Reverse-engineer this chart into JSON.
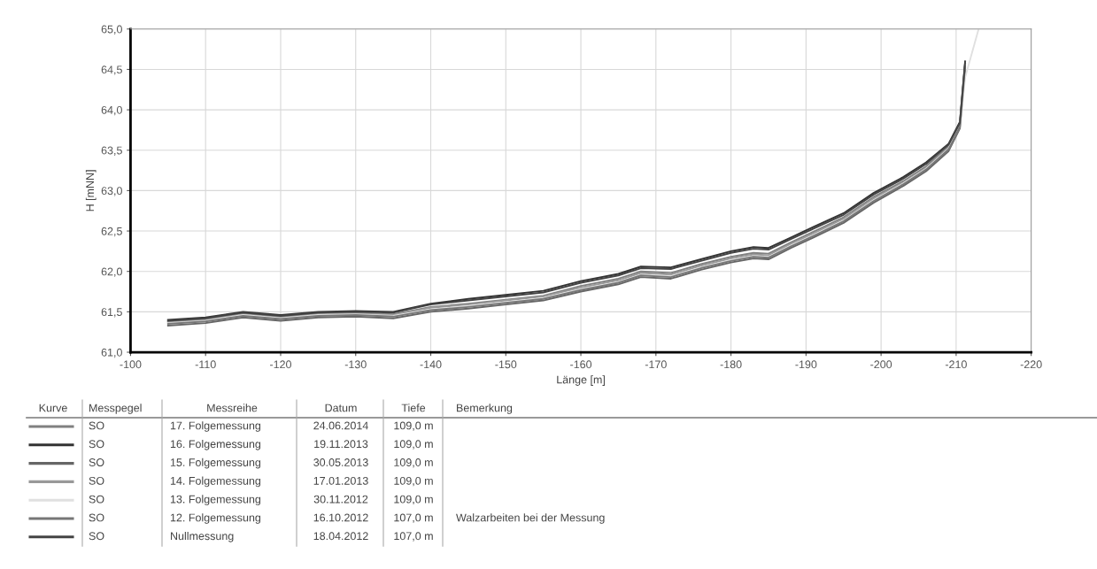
{
  "chart_data": {
    "type": "line",
    "xlabel": "Länge [m]",
    "ylabel": "H [mNN]",
    "x": [
      -105,
      -110,
      -115,
      -120,
      -125,
      -130,
      -135,
      -140,
      -145,
      -150,
      -155,
      -160,
      -165,
      -168,
      -172,
      -176,
      -180,
      -183,
      -185,
      -188,
      -191,
      -195,
      -199,
      -203,
      -206,
      -209,
      -210.5,
      -211.2,
      -213
    ],
    "xlim": [
      -100,
      -220
    ],
    "xticks": [
      -100,
      -110,
      -120,
      -130,
      -140,
      -150,
      -160,
      -170,
      -180,
      -190,
      -200,
      -210,
      -220
    ],
    "ylim": [
      61.0,
      65.0
    ],
    "yticks": [
      {
        "value": 61.0,
        "label": "61,0"
      },
      {
        "value": 61.5,
        "label": "61,5"
      },
      {
        "value": 62.0,
        "label": "62,0"
      },
      {
        "value": 62.5,
        "label": "62,5"
      },
      {
        "value": 63.0,
        "label": "63,0"
      },
      {
        "value": 63.5,
        "label": "63,5"
      },
      {
        "value": 64.0,
        "label": "64,0"
      },
      {
        "value": 64.5,
        "label": "64,5"
      },
      {
        "value": 65.0,
        "label": "65,0"
      }
    ],
    "grid": true,
    "series": [
      {
        "color": "#808080",
        "values": [
          61.38,
          61.41,
          61.48,
          61.44,
          61.48,
          61.49,
          61.47,
          61.56,
          61.6,
          61.65,
          61.7,
          61.82,
          61.91,
          62.0,
          61.98,
          62.09,
          62.18,
          62.23,
          62.22,
          62.36,
          62.49,
          62.67,
          62.92,
          63.12,
          63.3,
          63.55,
          63.82,
          64.57,
          null
        ]
      },
      {
        "color": "#333333",
        "values": [
          61.4,
          61.43,
          61.5,
          61.46,
          61.5,
          61.51,
          61.5,
          61.6,
          61.66,
          61.71,
          61.76,
          61.88,
          61.97,
          62.06,
          62.05,
          62.15,
          62.25,
          62.3,
          62.29,
          62.42,
          62.55,
          62.72,
          62.97,
          63.17,
          63.35,
          63.58,
          63.85,
          64.6,
          null
        ]
      },
      {
        "color": "#666666",
        "values": [
          61.33,
          61.36,
          61.43,
          61.39,
          61.43,
          61.44,
          61.42,
          61.5,
          61.54,
          61.59,
          61.64,
          61.75,
          61.84,
          61.93,
          61.91,
          62.02,
          62.11,
          62.16,
          62.15,
          62.29,
          62.42,
          62.6,
          62.85,
          63.06,
          63.24,
          63.49,
          63.77,
          64.52,
          null
        ]
      },
      {
        "color": "#999999",
        "values": [
          61.37,
          61.4,
          61.47,
          61.43,
          61.47,
          61.48,
          61.46,
          61.55,
          61.59,
          61.64,
          61.69,
          61.8,
          61.89,
          61.98,
          61.96,
          62.07,
          62.16,
          62.21,
          62.2,
          62.34,
          62.47,
          62.65,
          62.9,
          63.1,
          63.28,
          63.53,
          63.81,
          64.56,
          null
        ]
      },
      {
        "color": "#e0e0e0",
        "values": [
          61.36,
          61.39,
          61.46,
          61.42,
          61.46,
          61.47,
          61.45,
          61.53,
          61.57,
          61.62,
          61.67,
          61.78,
          61.87,
          61.96,
          61.94,
          62.05,
          62.14,
          62.19,
          62.18,
          62.32,
          62.45,
          62.63,
          62.88,
          63.09,
          63.27,
          63.52,
          63.8,
          64.4,
          65.0
        ]
      },
      {
        "color": "#777777",
        "values": [
          61.35,
          61.38,
          61.45,
          61.41,
          61.45,
          61.46,
          61.44,
          61.52,
          61.56,
          61.61,
          61.66,
          61.77,
          61.86,
          61.95,
          61.93,
          62.04,
          62.13,
          62.18,
          62.17,
          62.31,
          62.44,
          62.62,
          62.87,
          63.08,
          63.26,
          63.51,
          63.79,
          64.54,
          null
        ]
      },
      {
        "color": "#444444",
        "values": [
          61.39,
          61.42,
          61.49,
          61.45,
          61.49,
          61.5,
          61.49,
          61.59,
          61.64,
          61.69,
          61.74,
          61.86,
          61.95,
          62.04,
          62.03,
          62.13,
          62.23,
          62.28,
          62.27,
          62.4,
          62.53,
          62.7,
          62.95,
          63.15,
          63.33,
          63.57,
          63.84,
          64.59,
          null
        ]
      }
    ],
    "annotations": [
      "Kurve",
      "Messpegel",
      "Messreihe",
      "Datum",
      "Tiefe",
      "Bemerkung",
      "SO",
      "17. Folgemessung",
      "24.06.2014",
      "109,0 m",
      null,
      "SO",
      "16. Folgemessung",
      "19.11.2013",
      "109,0 m",
      null,
      "SO",
      "15. Folgemessung",
      "30.05.2013",
      "109,0 m",
      null,
      "SO",
      "14. Folgemessung",
      "17.01.2013",
      "109,0 m",
      null,
      "SO",
      "13. Folgemessung",
      "30.11.2012",
      "109,0 m",
      null,
      "SO",
      "12. Folgemessung",
      "16.10.2012",
      "107,0 m",
      "Walzarbeiten bei der Messung",
      "SO",
      "Nullmessung",
      "18.04.2012",
      "107,0 m",
      null
    ]
  }
}
